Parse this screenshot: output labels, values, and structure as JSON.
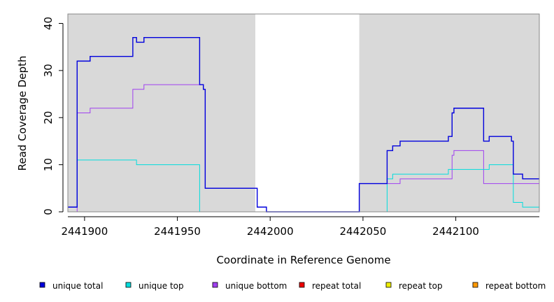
{
  "chart_data": {
    "type": "line",
    "title": "",
    "xlabel": "Coordinate in Reference Genome",
    "ylabel": "Read Coverage Depth",
    "xlim": [
      2441891,
      2442145
    ],
    "ylim": [
      0,
      42
    ],
    "x_ticks": [
      2441900,
      2441950,
      2442000,
      2442050,
      2442100
    ],
    "y_ticks": [
      0,
      10,
      20,
      30,
      40
    ],
    "x_tick_labels": [
      "2441900",
      "2441950",
      "2442000",
      "2442050",
      "2442100"
    ],
    "y_tick_labels": [
      "0",
      "10",
      "20",
      "30",
      "40"
    ],
    "shaded_regions": [
      {
        "start": 2441891,
        "end": 2441992,
        "color": "#d9d9d9"
      },
      {
        "start": 2442048,
        "end": 2442145,
        "color": "#d9d9d9"
      }
    ],
    "legend_position": "bottom",
    "series": [
      {
        "name": "unique total",
        "color": "#0000dd",
        "steps": [
          [
            2441891,
            1
          ],
          [
            2441896,
            32
          ],
          [
            2441903,
            33
          ],
          [
            2441926,
            37
          ],
          [
            2441928,
            36
          ],
          [
            2441932,
            37
          ],
          [
            2441962,
            27
          ],
          [
            2441964,
            26
          ],
          [
            2441965,
            5
          ],
          [
            2441993,
            1
          ],
          [
            2441998,
            0
          ],
          [
            2442048,
            6
          ],
          [
            2442063,
            13
          ],
          [
            2442066,
            14
          ],
          [
            2442070,
            15
          ],
          [
            2442096,
            16
          ],
          [
            2442098,
            21
          ],
          [
            2442099,
            22
          ],
          [
            2442115,
            15
          ],
          [
            2442118,
            16
          ],
          [
            2442130,
            15
          ],
          [
            2442131,
            8
          ],
          [
            2442136,
            7
          ],
          [
            2442145,
            7
          ]
        ]
      },
      {
        "name": "unique top",
        "color": "#00dddd",
        "steps": [
          [
            2441891,
            1
          ],
          [
            2441896,
            11
          ],
          [
            2441928,
            10
          ],
          [
            2441962,
            0
          ],
          [
            2442063,
            7
          ],
          [
            2442066,
            8
          ],
          [
            2442096,
            9
          ],
          [
            2442118,
            10
          ],
          [
            2442131,
            2
          ],
          [
            2442136,
            1
          ],
          [
            2442145,
            1
          ]
        ]
      },
      {
        "name": "unique bottom",
        "color": "#a040f0",
        "steps": [
          [
            2441891,
            0
          ],
          [
            2441896,
            21
          ],
          [
            2441903,
            22
          ],
          [
            2441926,
            26
          ],
          [
            2441932,
            27
          ],
          [
            2441962,
            27
          ],
          [
            2441964,
            26
          ],
          [
            2441965,
            5
          ],
          [
            2441993,
            1
          ],
          [
            2441998,
            0
          ],
          [
            2442048,
            6
          ],
          [
            2442070,
            7
          ],
          [
            2442098,
            12
          ],
          [
            2442099,
            13
          ],
          [
            2442115,
            6
          ],
          [
            2442145,
            6
          ]
        ]
      },
      {
        "name": "repeat total",
        "color": "#ee0000",
        "steps": [
          [
            2441891,
            0
          ],
          [
            2442145,
            0
          ]
        ]
      },
      {
        "name": "repeat top",
        "color": "#eeee00",
        "steps": [
          [
            2441891,
            0
          ],
          [
            2442145,
            0
          ]
        ]
      },
      {
        "name": "repeat bottom",
        "color": "#ff9900",
        "steps": [
          [
            2441891,
            0
          ],
          [
            2442145,
            0
          ]
        ]
      }
    ]
  }
}
